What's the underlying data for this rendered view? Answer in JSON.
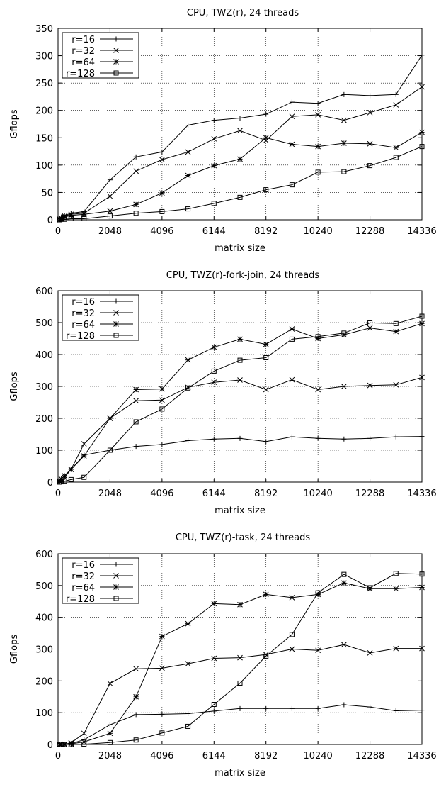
{
  "chart_data": [
    {
      "type": "line",
      "title": "CPU, TWZ(r), 24 threads",
      "xlabel": "matrix size",
      "ylabel": "Gflops",
      "xlim": [
        0,
        14336
      ],
      "ylim": [
        0,
        350
      ],
      "xticks": [
        "0",
        "2048",
        "4096",
        "6144",
        "8192",
        "10240",
        "12288",
        "14336"
      ],
      "yticks": [
        "0",
        "50",
        "100",
        "150",
        "200",
        "250",
        "300",
        "350"
      ],
      "grid": true,
      "legend": "top-left",
      "x": [
        64,
        128,
        256,
        512,
        1024,
        2048,
        3072,
        4096,
        5120,
        6144,
        7168,
        8192,
        9216,
        10240,
        11264,
        12288,
        13312,
        14336
      ],
      "series": [
        {
          "name": "r=16",
          "marker": "plus",
          "values": [
            2,
            5,
            8,
            12,
            15,
            73,
            115,
            124,
            173,
            182,
            186,
            193,
            215,
            213,
            229,
            227,
            229,
            301
          ]
        },
        {
          "name": "r=32",
          "marker": "cross",
          "values": [
            1,
            3,
            7,
            10,
            12,
            43,
            89,
            110,
            124,
            148,
            163,
            145,
            189,
            192,
            182,
            196,
            210,
            243
          ]
        },
        {
          "name": "r=64",
          "marker": "star",
          "values": [
            0,
            2,
            5,
            8,
            10,
            16,
            28,
            49,
            81,
            99,
            111,
            150,
            138,
            134,
            140,
            139,
            132,
            160
          ]
        },
        {
          "name": "r=128",
          "marker": "square",
          "values": [
            0,
            1,
            1,
            2,
            2,
            7,
            12,
            15,
            20,
            30,
            41,
            55,
            64,
            87,
            88,
            99,
            114,
            134
          ]
        }
      ]
    },
    {
      "type": "line",
      "title": "CPU, TWZ(r)-fork-join, 24 threads",
      "xlabel": "matrix size",
      "ylabel": "Gflops",
      "xlim": [
        0,
        14336
      ],
      "ylim": [
        0,
        600
      ],
      "xticks": [
        "0",
        "2048",
        "4096",
        "6144",
        "8192",
        "10240",
        "12288",
        "14336"
      ],
      "yticks": [
        "0",
        "100",
        "200",
        "300",
        "400",
        "500",
        "600"
      ],
      "grid": true,
      "legend": "top-left",
      "x": [
        64,
        128,
        256,
        512,
        1024,
        2048,
        3072,
        4096,
        5120,
        6144,
        7168,
        8192,
        9216,
        10240,
        11264,
        12288,
        13312,
        14336
      ],
      "series": [
        {
          "name": "r=16",
          "marker": "plus",
          "values": [
            3,
            10,
            20,
            40,
            85,
            100,
            112,
            118,
            130,
            135,
            137,
            127,
            142,
            137,
            135,
            137,
            142,
            143
          ]
        },
        {
          "name": "r=32",
          "marker": "cross",
          "values": [
            3,
            10,
            20,
            40,
            120,
            200,
            255,
            257,
            297,
            313,
            320,
            290,
            321,
            290,
            300,
            303,
            305,
            328
          ]
        },
        {
          "name": "r=64",
          "marker": "star",
          "values": [
            1,
            5,
            15,
            40,
            82,
            200,
            290,
            292,
            383,
            423,
            448,
            432,
            480,
            450,
            462,
            483,
            472,
            497
          ]
        },
        {
          "name": "r=128",
          "marker": "square",
          "values": [
            0,
            1,
            3,
            8,
            15,
            100,
            189,
            229,
            295,
            348,
            382,
            390,
            448,
            456,
            467,
            499,
            497,
            520
          ]
        }
      ]
    },
    {
      "type": "line",
      "title": "CPU, TWZ(r)-task, 24 threads",
      "xlabel": "matrix size",
      "ylabel": "Gflops",
      "xlim": [
        0,
        14336
      ],
      "ylim": [
        0,
        600
      ],
      "xticks": [
        "0",
        "2048",
        "4096",
        "6144",
        "8192",
        "10240",
        "12288",
        "14336"
      ],
      "yticks": [
        "0",
        "100",
        "200",
        "300",
        "400",
        "500",
        "600"
      ],
      "grid": true,
      "legend": "top-left",
      "x": [
        64,
        128,
        256,
        512,
        1024,
        2048,
        3072,
        4096,
        5120,
        6144,
        7168,
        8192,
        9216,
        10240,
        11264,
        12288,
        13312,
        14336
      ],
      "series": [
        {
          "name": "r=16",
          "marker": "plus",
          "values": [
            0,
            0,
            0,
            3,
            15,
            62,
            94,
            95,
            97,
            105,
            113,
            113,
            113,
            113,
            125,
            118,
            106,
            108
          ]
        },
        {
          "name": "r=32",
          "marker": "cross",
          "values": [
            0,
            0,
            1,
            5,
            35,
            192,
            238,
            240,
            254,
            271,
            273,
            283,
            300,
            296,
            314,
            288,
            302,
            302
          ]
        },
        {
          "name": "r=64",
          "marker": "star",
          "values": [
            0,
            0,
            0,
            2,
            8,
            35,
            150,
            340,
            380,
            443,
            440,
            472,
            462,
            472,
            508,
            490,
            490,
            494
          ]
        },
        {
          "name": "r=128",
          "marker": "square",
          "values": [
            0,
            0,
            0,
            0,
            1,
            6,
            14,
            36,
            57,
            126,
            193,
            278,
            346,
            477,
            535,
            493,
            538,
            536
          ]
        }
      ]
    }
  ]
}
